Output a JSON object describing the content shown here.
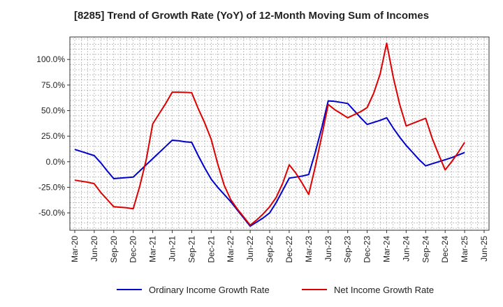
{
  "chart_data": {
    "type": "line",
    "title": "[8285]  Trend of Growth Rate (YoY) of 12-Month Moving Sum of Incomes",
    "xlabel": "",
    "ylabel": "",
    "x": [
      "Mar-20",
      "Jun-20",
      "Sep-20",
      "Dec-20",
      "Mar-21",
      "Jun-21",
      "Sep-21",
      "Dec-21",
      "Mar-22",
      "Jun-22",
      "Sep-22",
      "Dec-22",
      "Mar-23",
      "Jun-23",
      "Sep-23",
      "Dec-23",
      "Mar-24",
      "Jun-24",
      "Sep-24",
      "Dec-24",
      "Mar-25",
      "Jun-25"
    ],
    "ylim": [
      -67,
      122
    ],
    "y_ticks": [
      -50,
      -25,
      0,
      25,
      50,
      75,
      100
    ],
    "y_tick_labels": [
      "-50.0%",
      "-25.0%",
      "0.0%",
      "25.0%",
      "50.0%",
      "75.0%",
      "100.0%"
    ],
    "grid": true,
    "legend_position": "bottom",
    "series": [
      {
        "name": "Ordinary Income Growth Rate",
        "color": "#0000cc",
        "points": [
          [
            "Mar-20",
            12.0
          ],
          [
            "Apr-20",
            10.0
          ],
          [
            "May-20",
            8.0
          ],
          [
            "Jun-20",
            6.0
          ],
          [
            "Jul-20",
            -1.0
          ],
          [
            "Aug-20",
            -9.0
          ],
          [
            "Sep-20",
            -16.5
          ],
          [
            "Oct-20",
            -16.0
          ],
          [
            "Nov-20",
            -15.5
          ],
          [
            "Dec-20",
            -15.0
          ],
          [
            "Jan-21",
            -9.0
          ],
          [
            "Feb-21",
            -3.0
          ],
          [
            "Mar-21",
            3.0
          ],
          [
            "Apr-21",
            9.0
          ],
          [
            "May-21",
            15.0
          ],
          [
            "Jun-21",
            21.0
          ],
          [
            "Jul-21",
            20.5
          ],
          [
            "Aug-21",
            19.5
          ],
          [
            "Sep-21",
            19.0
          ],
          [
            "Oct-21",
            6.0
          ],
          [
            "Nov-21",
            -6.0
          ],
          [
            "Dec-21",
            -17.0
          ],
          [
            "Jan-22",
            -25.0
          ],
          [
            "Feb-22",
            -32.0
          ],
          [
            "Mar-22",
            -39.0
          ],
          [
            "Apr-22",
            -47.0
          ],
          [
            "May-22",
            -55.0
          ],
          [
            "Jun-22",
            -63.0
          ],
          [
            "Jul-22",
            -59.0
          ],
          [
            "Aug-22",
            -55.0
          ],
          [
            "Sep-22",
            -50.0
          ],
          [
            "Oct-22",
            -40.0
          ],
          [
            "Nov-22",
            -28.0
          ],
          [
            "Dec-22",
            -16.0
          ],
          [
            "Jan-23",
            -15.0
          ],
          [
            "Feb-23",
            -14.0
          ],
          [
            "Mar-23",
            -12.5
          ],
          [
            "Apr-23",
            9.0
          ],
          [
            "May-23",
            33.0
          ],
          [
            "Jun-23",
            59.5
          ],
          [
            "Jul-23",
            59.0
          ],
          [
            "Aug-23",
            58.0
          ],
          [
            "Sep-23",
            57.0
          ],
          [
            "Oct-23",
            50.0
          ],
          [
            "Nov-23",
            43.0
          ],
          [
            "Dec-23",
            36.5
          ],
          [
            "Jan-24",
            38.5
          ],
          [
            "Feb-24",
            40.5
          ],
          [
            "Mar-24",
            43.0
          ],
          [
            "Apr-24",
            33.0
          ],
          [
            "May-24",
            24.0
          ],
          [
            "Jun-24",
            16.0
          ],
          [
            "Jul-24",
            9.0
          ],
          [
            "Aug-24",
            2.0
          ],
          [
            "Sep-24",
            -4.0
          ],
          [
            "Oct-24",
            -2.0
          ],
          [
            "Nov-24",
            0.0
          ],
          [
            "Dec-24",
            2.0
          ],
          [
            "Jan-25",
            4.0
          ],
          [
            "Feb-25",
            6.5
          ],
          [
            "Mar-25",
            9.0
          ]
        ]
      },
      {
        "name": "Net Income Growth Rate",
        "color": "#dd0000",
        "points": [
          [
            "Mar-20",
            -18.0
          ],
          [
            "Apr-20",
            -19.0
          ],
          [
            "May-20",
            -20.0
          ],
          [
            "Jun-20",
            -21.5
          ],
          [
            "Jul-20",
            -30.0
          ],
          [
            "Aug-20",
            -37.0
          ],
          [
            "Sep-20",
            -44.0
          ],
          [
            "Oct-20",
            -44.5
          ],
          [
            "Nov-20",
            -45.0
          ],
          [
            "Dec-20",
            -46.0
          ],
          [
            "Jan-21",
            -24.0
          ],
          [
            "Feb-21",
            2.0
          ],
          [
            "Mar-21",
            37.0
          ],
          [
            "Apr-21",
            47.0
          ],
          [
            "May-21",
            57.0
          ],
          [
            "Jun-21",
            68.0
          ],
          [
            "Jul-21",
            68.0
          ],
          [
            "Aug-21",
            67.8
          ],
          [
            "Sep-21",
            67.5
          ],
          [
            "Oct-21",
            52.0
          ],
          [
            "Nov-21",
            38.0
          ],
          [
            "Dec-21",
            22.0
          ],
          [
            "Jan-22",
            -2.0
          ],
          [
            "Feb-22",
            -23.0
          ],
          [
            "Mar-22",
            -37.0
          ],
          [
            "Apr-22",
            -46.0
          ],
          [
            "May-22",
            -54.0
          ],
          [
            "Jun-22",
            -62.0
          ],
          [
            "Jul-22",
            -57.0
          ],
          [
            "Aug-22",
            -51.0
          ],
          [
            "Sep-22",
            -44.0
          ],
          [
            "Oct-22",
            -35.0
          ],
          [
            "Nov-22",
            -21.0
          ],
          [
            "Dec-22",
            -3.0
          ],
          [
            "Jan-23",
            -11.0
          ],
          [
            "Feb-23",
            -21.0
          ],
          [
            "Mar-23",
            -32.0
          ],
          [
            "Apr-23",
            -5.0
          ],
          [
            "May-23",
            25.0
          ],
          [
            "Jun-23",
            56.0
          ],
          [
            "Jul-23",
            51.0
          ],
          [
            "Aug-23",
            47.0
          ],
          [
            "Sep-23",
            43.0
          ],
          [
            "Oct-23",
            46.0
          ],
          [
            "Nov-23",
            49.0
          ],
          [
            "Dec-23",
            53.0
          ],
          [
            "Jan-24",
            67.0
          ],
          [
            "Feb-24",
            86.0
          ],
          [
            "Mar-24",
            116.0
          ],
          [
            "Apr-24",
            83.0
          ],
          [
            "May-24",
            56.0
          ],
          [
            "Jun-24",
            35.0
          ],
          [
            "Jul-24",
            37.5
          ],
          [
            "Aug-24",
            40.0
          ],
          [
            "Sep-24",
            42.5
          ],
          [
            "Oct-24",
            23.0
          ],
          [
            "Nov-24",
            7.0
          ],
          [
            "Dec-24",
            -8.0
          ],
          [
            "Jan-25",
            0.0
          ],
          [
            "Feb-25",
            9.0
          ],
          [
            "Mar-25",
            19.0
          ]
        ]
      }
    ]
  }
}
